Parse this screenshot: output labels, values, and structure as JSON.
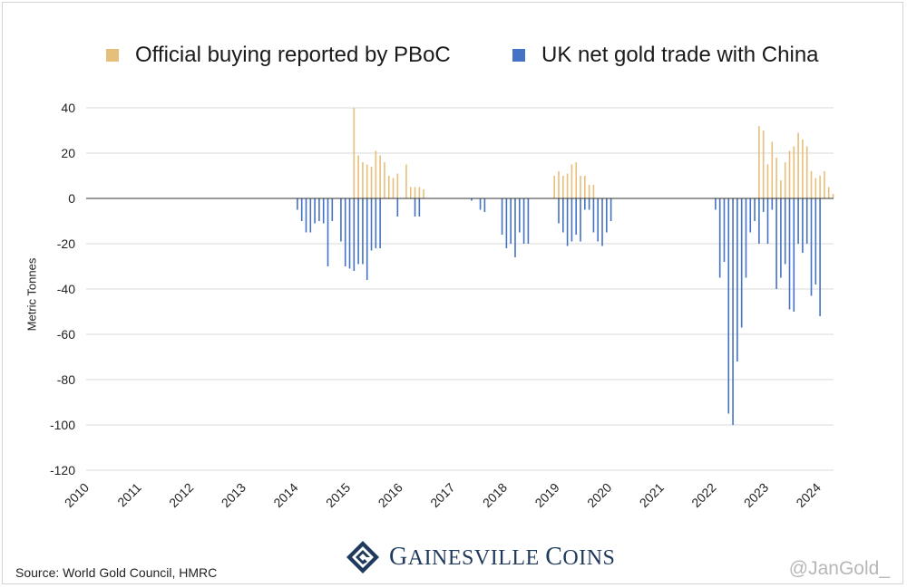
{
  "chart_data": {
    "type": "bar",
    "title": "",
    "xlabel": "",
    "ylabel": "Metric Tonnes",
    "ylim": [
      -120,
      40
    ],
    "yticks": [
      40,
      20,
      0,
      -20,
      -40,
      -60,
      -80,
      -100,
      -120
    ],
    "xticks": [
      "2010",
      "2011",
      "2012",
      "2013",
      "2014",
      "2015",
      "2016",
      "2017",
      "2018",
      "2019",
      "2020",
      "2021",
      "2022",
      "2023",
      "2024"
    ],
    "grid": true,
    "legend_position": "top",
    "series": [
      {
        "name": "Official buying reported by PBoC",
        "color": "#e6bf7a",
        "points": [
          {
            "date": "2015-02",
            "value": 40
          },
          {
            "date": "2015-03",
            "value": 19
          },
          {
            "date": "2015-04",
            "value": 16
          },
          {
            "date": "2015-05",
            "value": 15
          },
          {
            "date": "2015-06",
            "value": 14
          },
          {
            "date": "2015-07",
            "value": 21
          },
          {
            "date": "2015-08",
            "value": 19
          },
          {
            "date": "2015-09",
            "value": 16
          },
          {
            "date": "2015-10",
            "value": 10
          },
          {
            "date": "2015-11",
            "value": 9
          },
          {
            "date": "2015-12",
            "value": 11
          },
          {
            "date": "2016-02",
            "value": 15
          },
          {
            "date": "2016-03",
            "value": 5
          },
          {
            "date": "2016-04",
            "value": 5
          },
          {
            "date": "2016-05",
            "value": 5
          },
          {
            "date": "2016-06",
            "value": 4
          },
          {
            "date": "2018-12",
            "value": 10
          },
          {
            "date": "2019-01",
            "value": 12
          },
          {
            "date": "2019-02",
            "value": 10
          },
          {
            "date": "2019-03",
            "value": 11
          },
          {
            "date": "2019-04",
            "value": 15
          },
          {
            "date": "2019-05",
            "value": 16
          },
          {
            "date": "2019-06",
            "value": 10
          },
          {
            "date": "2019-07",
            "value": 10
          },
          {
            "date": "2019-08",
            "value": 6
          },
          {
            "date": "2019-09",
            "value": 6
          },
          {
            "date": "2022-11",
            "value": 32
          },
          {
            "date": "2022-12",
            "value": 30
          },
          {
            "date": "2023-01",
            "value": 15
          },
          {
            "date": "2023-02",
            "value": 25
          },
          {
            "date": "2023-03",
            "value": 18
          },
          {
            "date": "2023-04",
            "value": 8
          },
          {
            "date": "2023-05",
            "value": 16
          },
          {
            "date": "2023-06",
            "value": 21
          },
          {
            "date": "2023-07",
            "value": 23
          },
          {
            "date": "2023-08",
            "value": 29
          },
          {
            "date": "2023-09",
            "value": 26
          },
          {
            "date": "2023-10",
            "value": 23
          },
          {
            "date": "2023-11",
            "value": 12
          },
          {
            "date": "2023-12",
            "value": 9
          },
          {
            "date": "2024-01",
            "value": 10
          },
          {
            "date": "2024-02",
            "value": 12
          },
          {
            "date": "2024-03",
            "value": 5
          },
          {
            "date": "2024-04",
            "value": 2
          }
        ]
      },
      {
        "name": "UK net gold trade with China",
        "color": "#4472c4",
        "points": [
          {
            "date": "2014-01",
            "value": -5
          },
          {
            "date": "2014-02",
            "value": -10
          },
          {
            "date": "2014-03",
            "value": -15
          },
          {
            "date": "2014-04",
            "value": -15
          },
          {
            "date": "2014-05",
            "value": -11
          },
          {
            "date": "2014-06",
            "value": -10
          },
          {
            "date": "2014-07",
            "value": -11
          },
          {
            "date": "2014-08",
            "value": -30
          },
          {
            "date": "2014-09",
            "value": -10
          },
          {
            "date": "2014-11",
            "value": -19
          },
          {
            "date": "2014-12",
            "value": -30
          },
          {
            "date": "2015-01",
            "value": -31
          },
          {
            "date": "2015-02",
            "value": -32
          },
          {
            "date": "2015-03",
            "value": -29
          },
          {
            "date": "2015-04",
            "value": -29
          },
          {
            "date": "2015-05",
            "value": -36
          },
          {
            "date": "2015-06",
            "value": -23
          },
          {
            "date": "2015-07",
            "value": -22
          },
          {
            "date": "2015-08",
            "value": -22
          },
          {
            "date": "2015-12",
            "value": -8
          },
          {
            "date": "2016-04",
            "value": -8
          },
          {
            "date": "2016-05",
            "value": -8
          },
          {
            "date": "2017-05",
            "value": -1
          },
          {
            "date": "2017-07",
            "value": -5
          },
          {
            "date": "2017-08",
            "value": -6
          },
          {
            "date": "2017-12",
            "value": -16
          },
          {
            "date": "2018-01",
            "value": -22
          },
          {
            "date": "2018-02",
            "value": -20
          },
          {
            "date": "2018-03",
            "value": -26
          },
          {
            "date": "2018-04",
            "value": -15
          },
          {
            "date": "2018-05",
            "value": -20
          },
          {
            "date": "2018-06",
            "value": -20
          },
          {
            "date": "2019-01",
            "value": -11
          },
          {
            "date": "2019-02",
            "value": -15
          },
          {
            "date": "2019-03",
            "value": -21
          },
          {
            "date": "2019-04",
            "value": -19
          },
          {
            "date": "2019-05",
            "value": -16
          },
          {
            "date": "2019-06",
            "value": -19
          },
          {
            "date": "2019-07",
            "value": -5
          },
          {
            "date": "2019-08",
            "value": -5
          },
          {
            "date": "2019-09",
            "value": -15
          },
          {
            "date": "2019-10",
            "value": -19
          },
          {
            "date": "2019-11",
            "value": -21
          },
          {
            "date": "2019-12",
            "value": -15
          },
          {
            "date": "2020-01",
            "value": -10
          },
          {
            "date": "2022-01",
            "value": -5
          },
          {
            "date": "2022-02",
            "value": -35
          },
          {
            "date": "2022-03",
            "value": -28
          },
          {
            "date": "2022-04",
            "value": -95
          },
          {
            "date": "2022-05",
            "value": -100
          },
          {
            "date": "2022-06",
            "value": -72
          },
          {
            "date": "2022-07",
            "value": -57
          },
          {
            "date": "2022-08",
            "value": -35
          },
          {
            "date": "2022-09",
            "value": -15
          },
          {
            "date": "2022-10",
            "value": -10
          },
          {
            "date": "2022-11",
            "value": -20
          },
          {
            "date": "2022-12",
            "value": -6
          },
          {
            "date": "2023-01",
            "value": -20
          },
          {
            "date": "2023-02",
            "value": -5
          },
          {
            "date": "2023-03",
            "value": -40
          },
          {
            "date": "2023-04",
            "value": -35
          },
          {
            "date": "2023-05",
            "value": -29
          },
          {
            "date": "2023-06",
            "value": -49
          },
          {
            "date": "2023-07",
            "value": -50
          },
          {
            "date": "2023-08",
            "value": -20
          },
          {
            "date": "2023-09",
            "value": -24
          },
          {
            "date": "2023-10",
            "value": -20
          },
          {
            "date": "2023-11",
            "value": -43
          },
          {
            "date": "2023-12",
            "value": -38
          },
          {
            "date": "2024-01",
            "value": -52
          }
        ]
      }
    ]
  },
  "footer": {
    "source": "Source: World Gold Council, HMRC",
    "logo_text_big1": "G",
    "logo_text_small1": "AINESVILLE",
    "logo_text_big2": "C",
    "logo_text_small2": "OINS",
    "handle": "@JanGold_"
  },
  "icons": {
    "logo": "gainesville-coins-logo-icon"
  }
}
